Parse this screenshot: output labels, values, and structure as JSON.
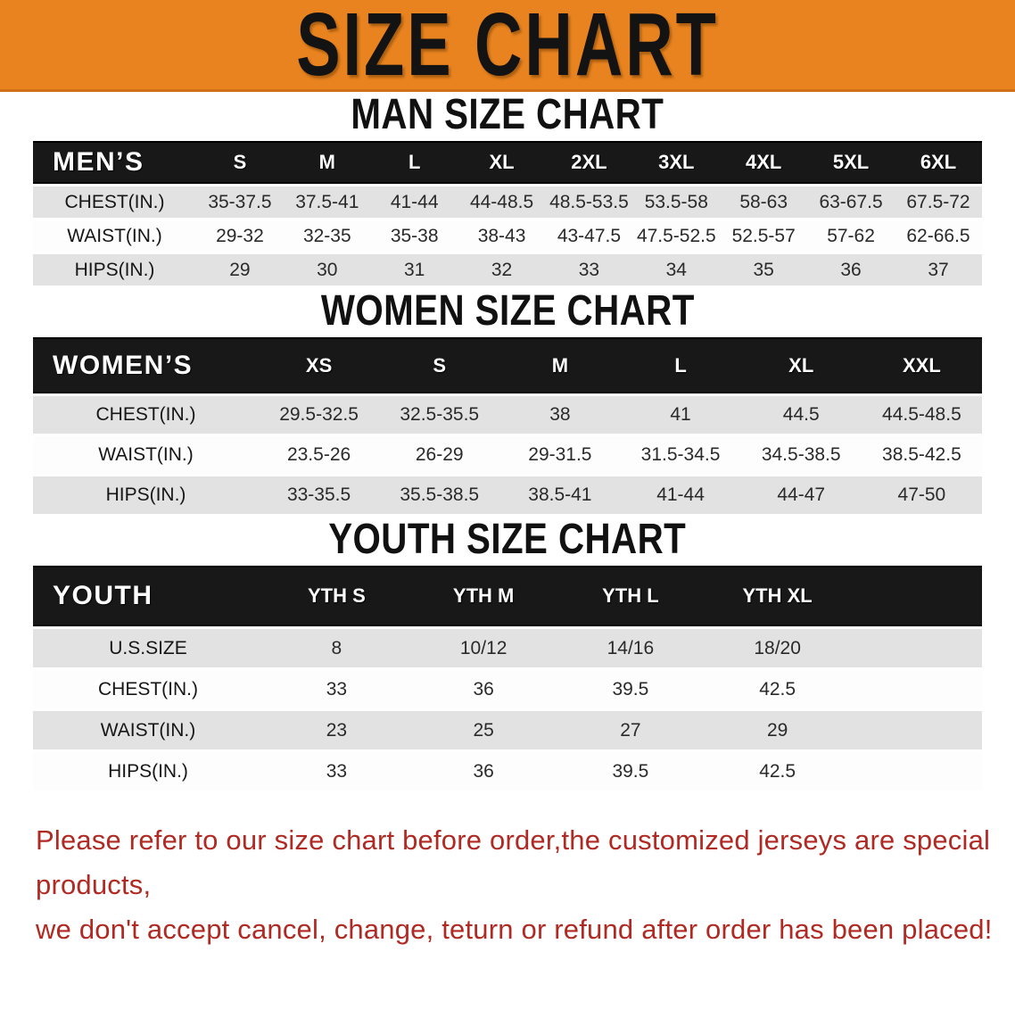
{
  "banner": {
    "title": "SIZE CHART",
    "bg_color": "#E8831F"
  },
  "sections": {
    "men": {
      "heading": "MAN SIZE CHART",
      "table_label": "MEN’S",
      "sizes": [
        "S",
        "M",
        "L",
        "XL",
        "2XL",
        "3XL",
        "4XL",
        "5XL",
        "6XL"
      ],
      "rows": [
        {
          "label": "CHEST(IN.)",
          "values": [
            "35-37.5",
            "37.5-41",
            "41-44",
            "44-48.5",
            "48.5-53.5",
            "53.5-58",
            "58-63",
            "63-67.5",
            "67.5-72"
          ]
        },
        {
          "label": "WAIST(IN.)",
          "values": [
            "29-32",
            "32-35",
            "35-38",
            "38-43",
            "43-47.5",
            "47.5-52.5",
            "52.5-57",
            "57-62",
            "62-66.5"
          ]
        },
        {
          "label": "HIPS(IN.)",
          "values": [
            "29",
            "30",
            "31",
            "32",
            "33",
            "34",
            "35",
            "36",
            "37"
          ]
        }
      ]
    },
    "women": {
      "heading": "WOMEN SIZE CHART",
      "table_label": "WOMEN’S",
      "sizes": [
        "XS",
        "S",
        "M",
        "L",
        "XL",
        "XXL"
      ],
      "rows": [
        {
          "label": "CHEST(IN.)",
          "values": [
            "29.5-32.5",
            "32.5-35.5",
            "38",
            "41",
            "44.5",
            "44.5-48.5"
          ]
        },
        {
          "label": "WAIST(IN.)",
          "values": [
            "23.5-26",
            "26-29",
            "29-31.5",
            "31.5-34.5",
            "34.5-38.5",
            "38.5-42.5"
          ]
        },
        {
          "label": "HIPS(IN.)",
          "values": [
            "33-35.5",
            "35.5-38.5",
            "38.5-41",
            "41-44",
            "44-47",
            "47-50"
          ]
        }
      ]
    },
    "youth": {
      "heading": "YOUTH SIZE CHART",
      "table_label": "YOUTH",
      "sizes": [
        "YTH S",
        "YTH M",
        "YTH L",
        "YTH XL"
      ],
      "rows": [
        {
          "label": "U.S.SIZE",
          "values": [
            "8",
            "10/12",
            "14/16",
            "18/20"
          ]
        },
        {
          "label": "CHEST(IN.)",
          "values": [
            "33",
            "36",
            "39.5",
            "42.5"
          ]
        },
        {
          "label": "WAIST(IN.)",
          "values": [
            "23",
            "25",
            "27",
            "29"
          ]
        },
        {
          "label": "HIPS(IN.)",
          "values": [
            "33",
            "36",
            "39.5",
            "42.5"
          ]
        }
      ]
    }
  },
  "disclaimer": {
    "line1": "Please refer to our size chart before order,the customized jerseys are special products,",
    "line2": "we don't accept cancel, change, teturn or refund after order has been placed!",
    "color": "#B02A23"
  }
}
